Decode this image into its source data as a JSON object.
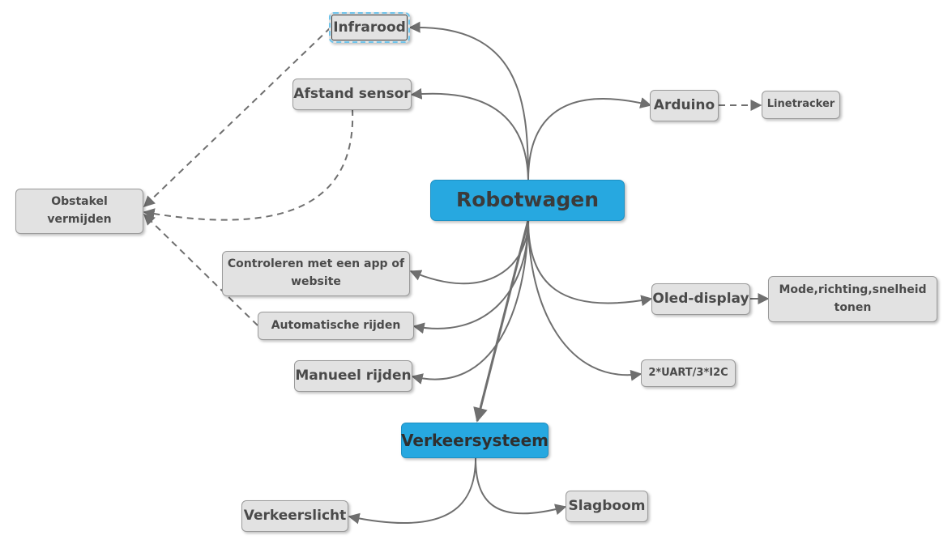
{
  "diagram": {
    "root": "Robotwagen",
    "nodes": {
      "infrarood": "Infrarood",
      "afstand_sensor": "Afstand sensor",
      "obstakel_line1": "Obstakel",
      "obstakel_line2": "vermijden",
      "controleren_line1": "Controleren met een app of",
      "controleren_line2": "website",
      "automatisch": "Automatische rijden",
      "manueel": "Manueel rijden",
      "verkeersysteem": "Verkeersysteem",
      "verkeerslicht": "Verkeerslicht",
      "slagboom": "Slagboom",
      "arduino": "Arduino",
      "linetracker": "Linetracker",
      "oled": "Oled-display",
      "mode_line1": "Mode,richting,snelheid",
      "mode_line2": "tonen",
      "uart": "2*UART/3*I2C"
    },
    "colors": {
      "root_fill": "#27a8e0",
      "topic_fill": "#e2e2e2",
      "connector": "#6f6f6f",
      "selected_border": "#6ec3ea"
    },
    "connections": [
      {
        "from": "Robotwagen",
        "to": "Infrarood",
        "style": "solid"
      },
      {
        "from": "Robotwagen",
        "to": "Afstand sensor",
        "style": "solid"
      },
      {
        "from": "Robotwagen",
        "to": "Arduino",
        "style": "solid"
      },
      {
        "from": "Robotwagen",
        "to": "Controleren met een app of website",
        "style": "solid"
      },
      {
        "from": "Robotwagen",
        "to": "Automatische rijden",
        "style": "solid"
      },
      {
        "from": "Robotwagen",
        "to": "Manueel rijden",
        "style": "solid"
      },
      {
        "from": "Robotwagen",
        "to": "Oled-display",
        "style": "solid"
      },
      {
        "from": "Robotwagen",
        "to": "2*UART/3*I2C",
        "style": "solid"
      },
      {
        "from": "Robotwagen",
        "to": "Verkeersysteem",
        "style": "solid"
      },
      {
        "from": "Verkeersysteem",
        "to": "Verkeerslicht",
        "style": "solid"
      },
      {
        "from": "Verkeersysteem",
        "to": "Slagboom",
        "style": "solid"
      },
      {
        "from": "Arduino",
        "to": "Linetracker",
        "style": "dashed"
      },
      {
        "from": "Oled-display",
        "to": "Mode,richting,snelheid tonen",
        "style": "solid"
      },
      {
        "from": "Infrarood",
        "to": "Obstakel vermijden",
        "style": "dashed"
      },
      {
        "from": "Afstand sensor",
        "to": "Obstakel vermijden",
        "style": "dashed"
      },
      {
        "from": "Automatische rijden",
        "to": "Obstakel vermijden",
        "style": "dashed"
      }
    ]
  }
}
